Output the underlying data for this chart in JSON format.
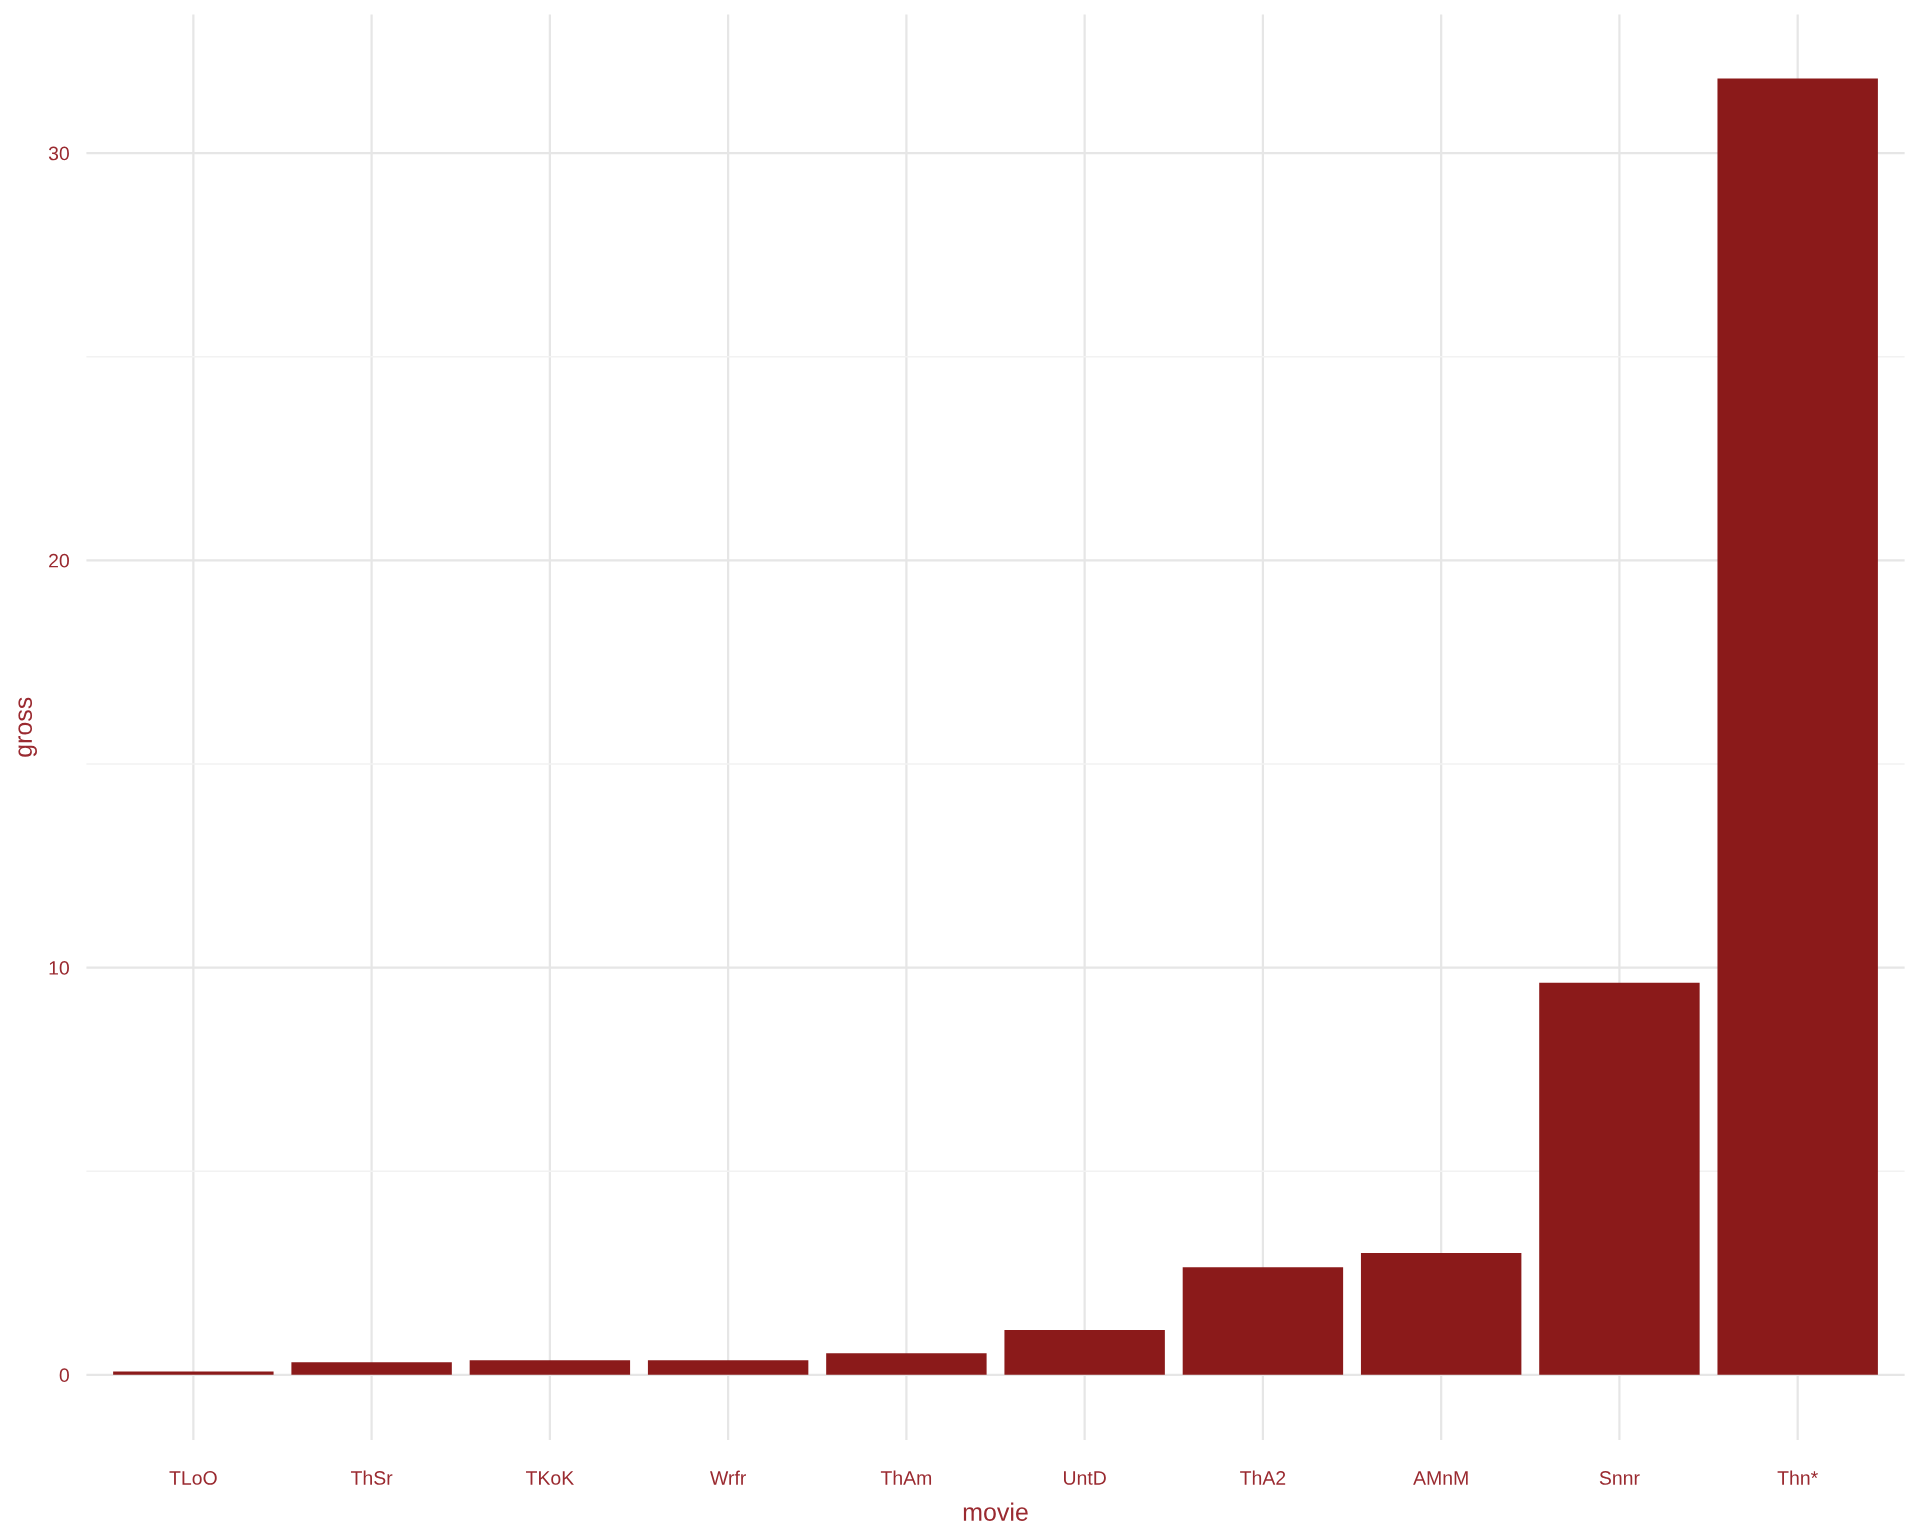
{
  "chart_data": {
    "type": "bar",
    "xlabel": "movie",
    "ylabel": "gross",
    "categories": [
      "TLoO",
      "ThSr",
      "TKoK",
      "Wrfr",
      "ThAm",
      "UntD",
      "ThA2",
      "AMnM",
      "Snnr",
      "Thn*"
    ],
    "values": [
      0.08,
      0.31,
      0.36,
      0.36,
      0.53,
      1.1,
      2.64,
      2.99,
      9.63,
      31.83
    ],
    "color": "#8b1a1a",
    "ylim": [
      -1.6,
      33.4
    ],
    "yticks": [
      0,
      {
        "value": 5,
        "label": null
      },
      10,
      {
        "value": 15,
        "label": null
      },
      20,
      {
        "value": 25,
        "label": null
      },
      30
    ],
    "grid": true
  }
}
